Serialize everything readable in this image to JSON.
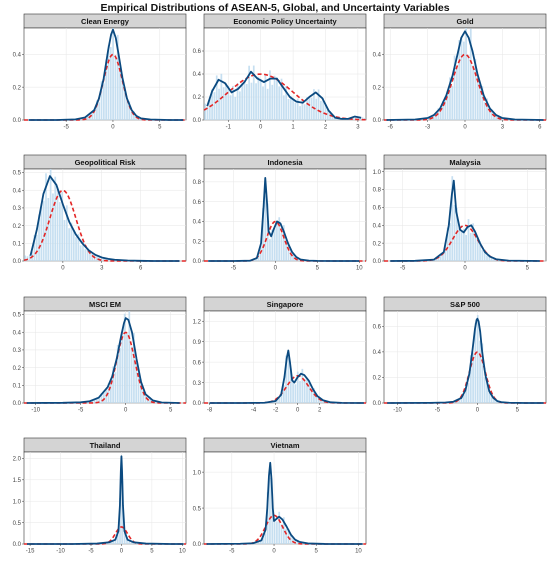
{
  "figure": {
    "title": "Empirical Distributions of ASEAN-5, Global, and Uncertainty Variables"
  },
  "colors": {
    "kde": "#0b4a80",
    "normal": "#e32626",
    "hist": "#bcd9ee",
    "strip": "#d4d4d4",
    "grid": "#e6e6e6",
    "border": "#333333"
  },
  "chart_data": [
    {
      "type": "area",
      "title": "Clean Energy",
      "xlim": [
        -9.5,
        7.8
      ],
      "ylim": [
        0,
        0.56
      ],
      "xticks": [
        -5,
        0,
        5
      ],
      "yticks": [
        0.0,
        0.2,
        0.4
      ],
      "x": [
        -9,
        -6,
        -4,
        -3,
        -2,
        -1.5,
        -1,
        -0.5,
        -0.2,
        0,
        0.3,
        0.6,
        1,
        1.5,
        2,
        2.5,
        3,
        4,
        6,
        7.5
      ],
      "density": [
        0,
        0,
        0.004,
        0.015,
        0.06,
        0.13,
        0.25,
        0.43,
        0.52,
        0.55,
        0.5,
        0.4,
        0.26,
        0.13,
        0.06,
        0.025,
        0.01,
        0.003,
        0,
        0
      ],
      "normal": {
        "mean": 0,
        "sd": 1
      }
    },
    {
      "type": "area",
      "title": "Economic Policy Uncertainty",
      "xlim": [
        -1.75,
        3.25
      ],
      "ylim": [
        0,
        0.8
      ],
      "xticks": [
        -1,
        0,
        1,
        2,
        3
      ],
      "yticks": [
        0.0,
        0.2,
        0.4,
        0.6
      ],
      "x": [
        -1.65,
        -1.5,
        -1.3,
        -1.1,
        -0.9,
        -0.7,
        -0.5,
        -0.3,
        -0.1,
        0.1,
        0.3,
        0.5,
        0.7,
        0.9,
        1.1,
        1.3,
        1.5,
        1.7,
        1.9,
        2.1,
        2.3,
        2.5,
        2.7,
        2.9,
        3.1
      ],
      "density": [
        0.12,
        0.25,
        0.35,
        0.32,
        0.24,
        0.27,
        0.33,
        0.42,
        0.36,
        0.33,
        0.36,
        0.36,
        0.28,
        0.2,
        0.16,
        0.15,
        0.2,
        0.24,
        0.19,
        0.08,
        0.02,
        0.01,
        0.01,
        0.03,
        0.02
      ],
      "normal": {
        "mean": 0,
        "sd": 1
      }
    },
    {
      "type": "area",
      "title": "Gold",
      "xlim": [
        -6.5,
        6.5
      ],
      "ylim": [
        0,
        0.56
      ],
      "xticks": [
        -6,
        -3,
        0,
        3,
        6
      ],
      "yticks": [
        0.0,
        0.2,
        0.4
      ],
      "x": [
        -6.3,
        -4,
        -3,
        -2.5,
        -2,
        -1.5,
        -1,
        -0.6,
        -0.3,
        0,
        0.3,
        0.6,
        1,
        1.5,
        2,
        2.5,
        3,
        4,
        6.3
      ],
      "density": [
        0,
        0.003,
        0.012,
        0.03,
        0.07,
        0.15,
        0.27,
        0.4,
        0.5,
        0.54,
        0.5,
        0.42,
        0.28,
        0.15,
        0.07,
        0.03,
        0.012,
        0.003,
        0
      ],
      "normal": {
        "mean": 0,
        "sd": 1
      }
    },
    {
      "type": "area",
      "title": "Geopolitical Risk",
      "xlim": [
        -3,
        9.5
      ],
      "ylim": [
        0,
        0.52
      ],
      "xticks": [
        0,
        3,
        6
      ],
      "yticks": [
        0.0,
        0.1,
        0.2,
        0.3,
        0.4,
        0.5
      ],
      "x": [
        -2.5,
        -2,
        -1.5,
        -1,
        -0.5,
        0,
        0.5,
        1,
        1.5,
        2,
        2.5,
        3,
        3.5,
        4,
        5,
        6,
        7,
        8,
        9
      ],
      "density": [
        0.03,
        0.18,
        0.38,
        0.48,
        0.43,
        0.32,
        0.22,
        0.15,
        0.1,
        0.06,
        0.035,
        0.02,
        0.012,
        0.007,
        0.003,
        0.001,
        0,
        0,
        0
      ],
      "normal": {
        "mean": 0,
        "sd": 1
      }
    },
    {
      "type": "area",
      "title": "Indonesia",
      "xlim": [
        -8.5,
        10.8
      ],
      "ylim": [
        0,
        0.93
      ],
      "xticks": [
        -5,
        0,
        5,
        10
      ],
      "yticks": [
        0.0,
        0.2,
        0.4,
        0.6,
        0.8
      ],
      "x": [
        -8,
        -5,
        -3,
        -2.2,
        -1.7,
        -1.4,
        -1.2,
        -1,
        -0.8,
        -0.5,
        -0.2,
        0.2,
        0.6,
        1,
        1.5,
        2,
        2.5,
        3,
        4,
        5,
        7,
        10
      ],
      "density": [
        0,
        0,
        0.003,
        0.03,
        0.18,
        0.55,
        0.84,
        0.6,
        0.3,
        0.25,
        0.32,
        0.4,
        0.38,
        0.3,
        0.18,
        0.09,
        0.04,
        0.015,
        0.004,
        0.001,
        0,
        0
      ],
      "normal": {
        "mean": 0,
        "sd": 1
      }
    },
    {
      "type": "area",
      "title": "Malaysia",
      "xlim": [
        -6.5,
        6.5
      ],
      "ylim": [
        0,
        1.03
      ],
      "xticks": [
        -5,
        0,
        5
      ],
      "yticks": [
        0.0,
        0.2,
        0.4,
        0.6,
        0.8,
        1.0
      ],
      "x": [
        -6,
        -4,
        -2.5,
        -1.7,
        -1.3,
        -1.05,
        -0.9,
        -0.7,
        -0.4,
        -0.1,
        0.2,
        0.5,
        0.8,
        1.2,
        1.6,
        2,
        2.5,
        3.5,
        6
      ],
      "density": [
        0,
        0.002,
        0.015,
        0.1,
        0.4,
        0.75,
        0.9,
        0.55,
        0.35,
        0.32,
        0.38,
        0.4,
        0.33,
        0.2,
        0.1,
        0.05,
        0.02,
        0.004,
        0
      ],
      "normal": {
        "mean": 0,
        "sd": 1
      }
    },
    {
      "type": "area",
      "title": "MSCI EM",
      "xlim": [
        -11.3,
        6.7
      ],
      "ylim": [
        0,
        0.52
      ],
      "xticks": [
        -10,
        -5,
        0,
        5
      ],
      "yticks": [
        0.0,
        0.1,
        0.2,
        0.3,
        0.4,
        0.5
      ],
      "x": [
        -11,
        -7,
        -5,
        -4,
        -3,
        -2,
        -1.5,
        -1,
        -0.5,
        -0.2,
        0,
        0.3,
        0.7,
        1.2,
        1.7,
        2.2,
        3,
        4,
        6
      ],
      "density": [
        0,
        0.001,
        0.004,
        0.01,
        0.03,
        0.09,
        0.15,
        0.25,
        0.38,
        0.45,
        0.48,
        0.47,
        0.4,
        0.25,
        0.12,
        0.05,
        0.015,
        0.003,
        0
      ],
      "normal": {
        "mean": 0,
        "sd": 1
      }
    },
    {
      "type": "area",
      "title": "Singapore",
      "xlim": [
        -8.5,
        6.2
      ],
      "ylim": [
        0,
        1.35
      ],
      "xticks": [
        -8,
        -4,
        -2,
        0,
        2
      ],
      "yticks": [
        0.0,
        0.3,
        0.6,
        0.9,
        1.2
      ],
      "x": [
        -8,
        -5,
        -3,
        -2,
        -1.5,
        -1.2,
        -1,
        -0.85,
        -0.7,
        -0.5,
        -0.3,
        0,
        0.3,
        0.6,
        1,
        1.4,
        1.8,
        2.3,
        3,
        4,
        6
      ],
      "density": [
        0,
        0,
        0.004,
        0.03,
        0.12,
        0.38,
        0.65,
        0.77,
        0.6,
        0.33,
        0.3,
        0.38,
        0.43,
        0.41,
        0.33,
        0.2,
        0.1,
        0.04,
        0.01,
        0.002,
        0
      ],
      "normal": {
        "mean": 0,
        "sd": 1
      }
    },
    {
      "type": "area",
      "title": "S&P 500",
      "xlim": [
        -11.7,
        8.6
      ],
      "ylim": [
        0,
        0.72
      ],
      "xticks": [
        -10,
        -5,
        0,
        5
      ],
      "yticks": [
        0.0,
        0.2,
        0.4,
        0.6
      ],
      "x": [
        -11.3,
        -6,
        -4,
        -3,
        -2,
        -1.5,
        -1,
        -0.6,
        -0.3,
        -0.1,
        0,
        0.15,
        0.35,
        0.6,
        1,
        1.5,
        2,
        2.5,
        3,
        4,
        6,
        8.3
      ],
      "density": [
        0,
        0.001,
        0.004,
        0.01,
        0.04,
        0.1,
        0.23,
        0.42,
        0.58,
        0.65,
        0.66,
        0.64,
        0.56,
        0.4,
        0.22,
        0.09,
        0.04,
        0.015,
        0.007,
        0.002,
        0,
        0
      ],
      "normal": {
        "mean": 0,
        "sd": 1
      }
    },
    {
      "type": "area",
      "title": "Thailand",
      "xlim": [
        -16,
        10.6
      ],
      "ylim": [
        0,
        2.15
      ],
      "xticks": [
        -15,
        -10,
        -5,
        0,
        5,
        10
      ],
      "yticks": [
        0.0,
        0.5,
        1.0,
        1.5,
        2.0
      ],
      "x": [
        -15.5,
        -8,
        -4,
        -2,
        -1,
        -0.5,
        -0.25,
        -0.1,
        0,
        0.1,
        0.25,
        0.5,
        1,
        2,
        4,
        8,
        10.2
      ],
      "density": [
        0,
        0,
        0.01,
        0.04,
        0.1,
        0.3,
        0.9,
        1.7,
        2.05,
        1.7,
        0.9,
        0.3,
        0.1,
        0.04,
        0.01,
        0,
        0
      ],
      "normal": {
        "mean": 0,
        "sd": 1
      }
    },
    {
      "type": "area",
      "title": "Vietnam",
      "xlim": [
        -8.3,
        10.9
      ],
      "ylim": [
        0,
        1.28
      ],
      "xticks": [
        -5,
        0,
        5,
        10
      ],
      "yticks": [
        0.0,
        0.5,
        1.0
      ],
      "x": [
        -8,
        -4,
        -2.5,
        -1.5,
        -1,
        -0.8,
        -0.6,
        -0.45,
        -0.3,
        -0.15,
        0,
        0.3,
        0.6,
        1,
        1.5,
        2,
        2.5,
        3,
        4,
        6,
        10.5
      ],
      "density": [
        0,
        0.003,
        0.01,
        0.05,
        0.2,
        0.5,
        0.95,
        1.13,
        0.9,
        0.5,
        0.32,
        0.35,
        0.38,
        0.34,
        0.24,
        0.13,
        0.06,
        0.03,
        0.008,
        0.001,
        0
      ],
      "normal": {
        "mean": 0,
        "sd": 1
      }
    }
  ]
}
